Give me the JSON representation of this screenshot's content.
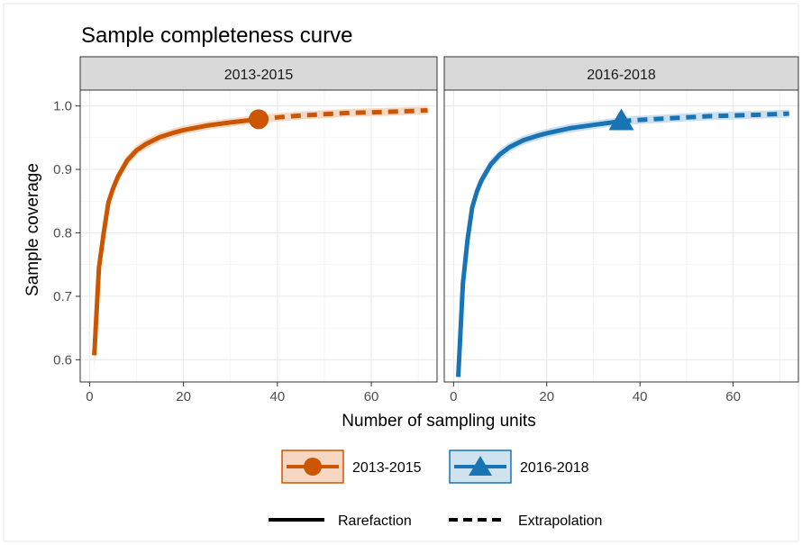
{
  "chart_data": {
    "type": "line",
    "title": "Sample completeness curve",
    "xlabel": "Number of sampling units",
    "ylabel": "Sample coverage",
    "xlim": [
      -2,
      74
    ],
    "ylim": [
      0.565,
      1.025
    ],
    "x_ticks": [
      0,
      20,
      40,
      60
    ],
    "y_ticks": [
      0.6,
      0.7,
      0.8,
      0.9,
      1.0
    ],
    "y_tick_labels": [
      "0.6",
      "0.7",
      "0.8",
      "0.9",
      "1.0"
    ],
    "grid": true,
    "legend_position": "bottom",
    "panels": [
      {
        "label": "2013-2015",
        "color": "#CC5500",
        "marker": "circle",
        "observed": {
          "x": 36,
          "y": 0.979
        },
        "rarefaction": {
          "x": [
            1,
            2,
            3,
            4,
            5,
            6,
            8,
            10,
            12,
            15,
            18,
            20,
            25,
            30,
            36
          ],
          "y": [
            0.607,
            0.745,
            0.8,
            0.848,
            0.87,
            0.888,
            0.914,
            0.93,
            0.94,
            0.951,
            0.958,
            0.962,
            0.969,
            0.974,
            0.979
          ]
        },
        "extrapolation": {
          "x": [
            36,
            40,
            45,
            50,
            55,
            60,
            65,
            72
          ],
          "y": [
            0.979,
            0.982,
            0.985,
            0.987,
            0.989,
            0.99,
            0.991,
            0.993
          ]
        }
      },
      {
        "label": "2016-2018",
        "color": "#1874B4",
        "marker": "triangle",
        "observed": {
          "x": 36,
          "y": 0.976
        },
        "rarefaction": {
          "x": [
            1,
            2,
            3,
            4,
            5,
            6,
            8,
            10,
            12,
            15,
            18,
            20,
            25,
            30,
            36
          ],
          "y": [
            0.573,
            0.72,
            0.79,
            0.84,
            0.865,
            0.883,
            0.908,
            0.924,
            0.935,
            0.946,
            0.953,
            0.957,
            0.965,
            0.97,
            0.976
          ]
        },
        "extrapolation": {
          "x": [
            36,
            40,
            45,
            50,
            55,
            60,
            65,
            72
          ],
          "y": [
            0.976,
            0.978,
            0.98,
            0.982,
            0.984,
            0.985,
            0.986,
            0.988
          ]
        }
      }
    ],
    "linetype_legend": [
      "Rarefaction",
      "Extrapolation"
    ]
  }
}
